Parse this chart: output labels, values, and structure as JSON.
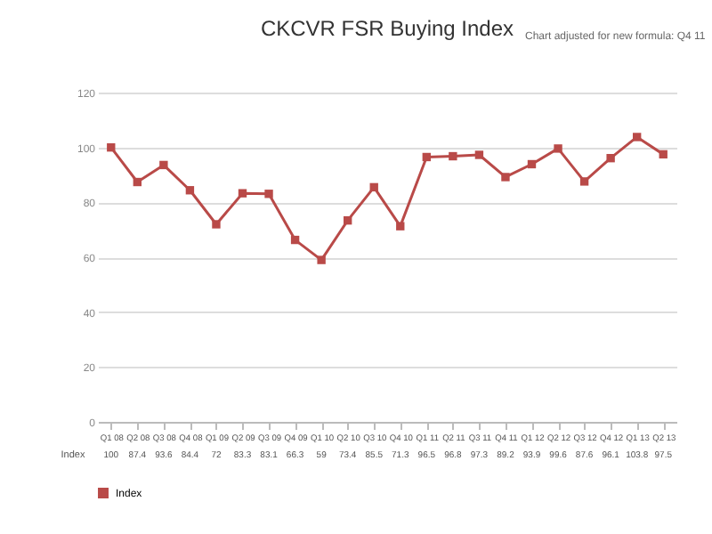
{
  "chart_data": {
    "type": "line",
    "title": "CKCVR FSR Buying Index",
    "annotations": [
      "Chart adjusted for new formula: Q4 11"
    ],
    "categories": [
      "Q1 08",
      "Q2 08",
      "Q3 08",
      "Q4 08",
      "Q1 09",
      "Q2 09",
      "Q3 09",
      "Q4 09",
      "Q1 10",
      "Q2 10",
      "Q3 10",
      "Q4 10",
      "Q1 11",
      "Q2 11",
      "Q3 11",
      "Q4 11",
      "Q1 12",
      "Q2 12",
      "Q3 12",
      "Q4 12",
      "Q1 13",
      "Q2 13"
    ],
    "series": [
      {
        "name": "Index",
        "color": "#b94a48",
        "values": [
          100,
          87.4,
          93.6,
          84.4,
          72.0,
          83.3,
          83.1,
          66.3,
          59.0,
          73.4,
          85.5,
          71.3,
          96.5,
          96.8,
          97.3,
          89.2,
          93.9,
          99.6,
          87.6,
          96.1,
          103.8,
          97.5
        ]
      }
    ],
    "ylim": [
      0,
      120
    ],
    "yticks": [
      0,
      20,
      40,
      60,
      80,
      100,
      120
    ],
    "grid": "y",
    "legend": "bottom",
    "marker": "square",
    "line_style": "solid",
    "data_labels": true
  }
}
